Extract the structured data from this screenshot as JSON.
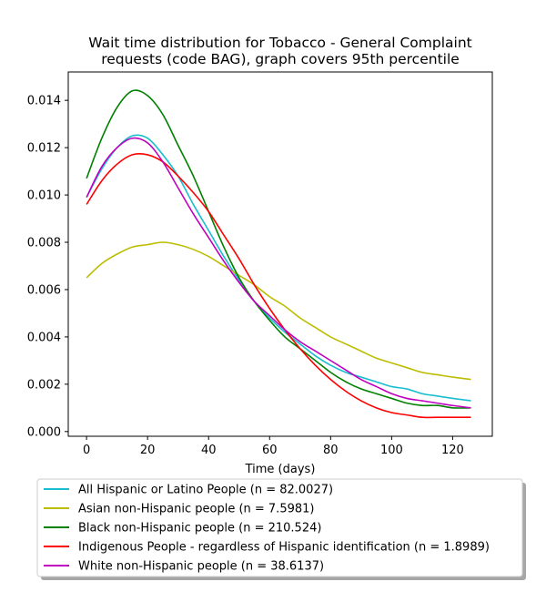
{
  "chart_data": {
    "type": "line",
    "title": "Wait time distribution  for Tobacco - General Complaint requests (code BAG), graph covers 95th percentile",
    "title_lines": [
      "Wait time distribution  for Tobacco - General Complaint",
      "requests (code BAG), graph covers 95th percentile"
    ],
    "xlabel": "Time (days)",
    "ylabel": "",
    "xlim": [
      -6,
      133
    ],
    "ylim": [
      -0.0002,
      0.0152
    ],
    "xticks": [
      0,
      20,
      40,
      60,
      80,
      100,
      120
    ],
    "yticks": [
      0.0,
      0.002,
      0.004,
      0.006,
      0.008,
      0.01,
      0.012,
      0.014
    ],
    "ytick_labels": [
      "0.000",
      "0.002",
      "0.004",
      "0.006",
      "0.008",
      "0.010",
      "0.012",
      "0.014"
    ],
    "grid": false,
    "legend_position": "below-plot",
    "x": [
      0,
      5,
      10,
      15,
      20,
      25,
      30,
      35,
      40,
      45,
      50,
      55,
      60,
      65,
      70,
      75,
      80,
      85,
      90,
      95,
      100,
      105,
      110,
      115,
      120,
      126
    ],
    "series": [
      {
        "name": "All Hispanic or Latino People (n = 82.0027)",
        "color": "#17becf",
        "values": [
          0.0099,
          0.0111,
          0.012,
          0.0125,
          0.0124,
          0.0117,
          0.0108,
          0.0096,
          0.0085,
          0.0074,
          0.0064,
          0.0055,
          0.0048,
          0.0042,
          0.0037,
          0.0032,
          0.0028,
          0.0025,
          0.0023,
          0.0021,
          0.0019,
          0.0018,
          0.0016,
          0.0015,
          0.0014,
          0.0013
        ]
      },
      {
        "name": "Asian non-Hispanic people (n = 7.5981)",
        "color": "#bcbd00",
        "values": [
          0.0065,
          0.0071,
          0.0075,
          0.0078,
          0.0079,
          0.008,
          0.0079,
          0.0077,
          0.0074,
          0.007,
          0.0066,
          0.0062,
          0.0057,
          0.0053,
          0.0048,
          0.0044,
          0.004,
          0.0037,
          0.0034,
          0.0031,
          0.0029,
          0.0027,
          0.0025,
          0.0024,
          0.0023,
          0.0022
        ]
      },
      {
        "name": "Black non-Hispanic people (n = 210.524)",
        "color": "#008000",
        "values": [
          0.0107,
          0.0124,
          0.0137,
          0.0144,
          0.0142,
          0.0134,
          0.0121,
          0.0108,
          0.0093,
          0.0078,
          0.0065,
          0.0055,
          0.0047,
          0.004,
          0.0035,
          0.003,
          0.0025,
          0.0021,
          0.0018,
          0.0016,
          0.0014,
          0.0012,
          0.0011,
          0.0011,
          0.001,
          0.001
        ]
      },
      {
        "name": "Indigenous People - regardless of Hispanic identification (n = 1.8989)",
        "color": "#ff0000",
        "values": [
          0.0096,
          0.0106,
          0.0113,
          0.0117,
          0.0117,
          0.0114,
          0.0108,
          0.0101,
          0.0093,
          0.0083,
          0.0073,
          0.0062,
          0.0052,
          0.0043,
          0.0035,
          0.0028,
          0.0022,
          0.0017,
          0.0013,
          0.001,
          0.0008,
          0.0007,
          0.0006,
          0.0006,
          0.0006,
          0.0006
        ]
      },
      {
        "name": "White non-Hispanic people (n = 38.6137)",
        "color": "#bf00bf",
        "values": [
          0.0099,
          0.0112,
          0.012,
          0.0124,
          0.0122,
          0.0114,
          0.0103,
          0.0092,
          0.0082,
          0.0072,
          0.0063,
          0.0055,
          0.0049,
          0.0043,
          0.0038,
          0.0034,
          0.003,
          0.0026,
          0.0022,
          0.0019,
          0.0016,
          0.0014,
          0.0013,
          0.0012,
          0.0011,
          0.001
        ]
      }
    ]
  }
}
